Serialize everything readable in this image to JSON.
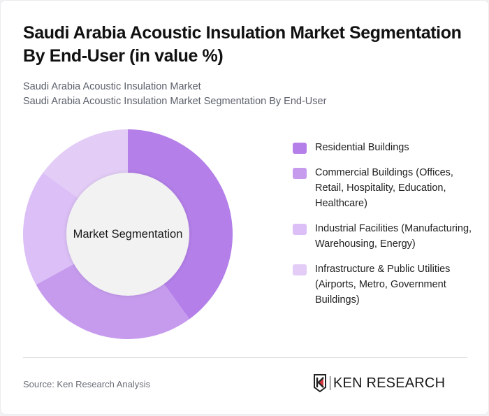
{
  "header": {
    "title": "Saudi Arabia Acoustic Insulation Market Segmentation By End-User (in value %)",
    "subtitle_line1": "Saudi Arabia Acoustic Insulation Market",
    "subtitle_line2": "Saudi Arabia Acoustic Insulation Market Segmentation By End-User"
  },
  "chart": {
    "center_label": "Market Segmentation"
  },
  "legend": {
    "items": [
      {
        "label": "Residential Buildings",
        "color": "#b47fe9"
      },
      {
        "label": "Commercial Buildings (Offices, Retail, Hospitality, Education, Healthcare)",
        "color": "#c69bee"
      },
      {
        "label": "Industrial Facilities (Manufacturing, Warehousing, Energy)",
        "color": "#dbbff6"
      },
      {
        "label": "Infrastructure & Public Utilities (Airports, Metro, Government Buildings)",
        "color": "#e3cdf7"
      }
    ]
  },
  "footer": {
    "source": "Source: Ken Research Analysis",
    "logo_text": "KEN RESEARCH"
  },
  "chart_data": {
    "type": "pie",
    "variant": "donut",
    "title": "Saudi Arabia Acoustic Insulation Market Segmentation By End-User (in value %)",
    "center_label": "Market Segmentation",
    "categories": [
      "Residential Buildings",
      "Commercial Buildings (Offices, Retail, Hospitality, Education, Healthcare)",
      "Industrial Facilities (Manufacturing, Warehousing, Energy)",
      "Infrastructure & Public Utilities (Airports, Metro, Government Buildings)"
    ],
    "values": [
      40,
      27,
      18,
      15
    ],
    "colors": [
      "#b47fe9",
      "#c69bee",
      "#dbbff6",
      "#e3cdf7"
    ],
    "start_angle": "top, clockwise",
    "legend_position": "right"
  }
}
